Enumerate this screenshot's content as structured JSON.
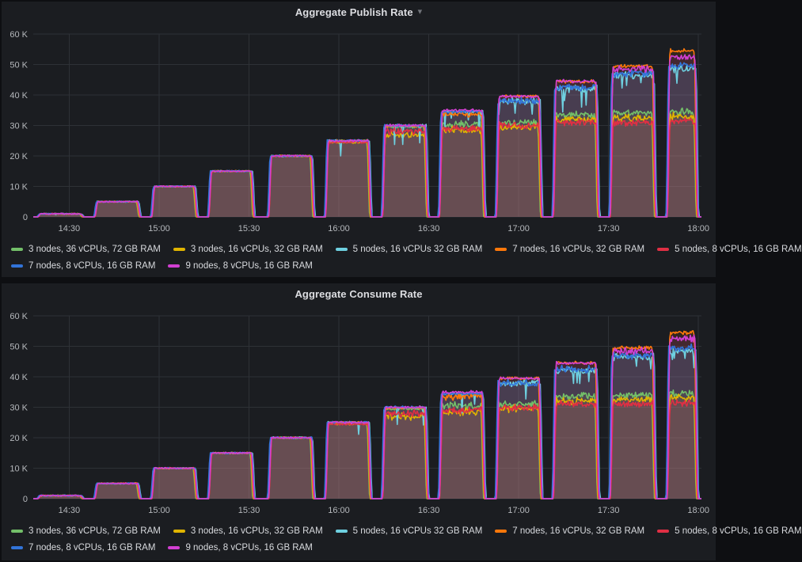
{
  "panels": [
    {
      "menu_caret": true
    },
    {
      "menu_caret": false
    }
  ],
  "chart_data": [
    {
      "type": "area",
      "title": "Aggregate Publish Rate",
      "xlabel": "",
      "ylabel": "",
      "ylim": [
        0,
        60000
      ],
      "y_ticks": [
        "0",
        "10 K",
        "20 K",
        "30 K",
        "40 K",
        "50 K",
        "60 K"
      ],
      "x_ticks": [
        "14:30",
        "15:00",
        "15:30",
        "16:00",
        "16:30",
        "17:00",
        "17:30",
        "18:00"
      ],
      "time_range": [
        "14:18",
        "18:01"
      ],
      "grid": true,
      "legend_position": "bottom",
      "step_targets_k": [
        1,
        5,
        10,
        15,
        20,
        25,
        30,
        35,
        40,
        45,
        50,
        55
      ],
      "steps": [
        {
          "start": "14:20",
          "end": "14:34"
        },
        {
          "start": "14:39",
          "end": "14:53"
        },
        {
          "start": "14:58",
          "end": "15:12"
        },
        {
          "start": "15:17",
          "end": "15:31"
        },
        {
          "start": "15:37",
          "end": "15:51"
        },
        {
          "start": "15:56",
          "end": "16:10"
        },
        {
          "start": "16:15",
          "end": "16:29"
        },
        {
          "start": "16:34",
          "end": "16:48"
        },
        {
          "start": "16:53",
          "end": "17:07"
        },
        {
          "start": "17:12",
          "end": "17:26"
        },
        {
          "start": "17:31",
          "end": "17:45"
        },
        {
          "start": "17:50",
          "end": "17:59"
        }
      ],
      "series": [
        {
          "name": "3 nodes, 36 vCPUs, 72 GB RAM",
          "color": "#73BF69",
          "plateaus_k": [
            1,
            5,
            10,
            15,
            20,
            25,
            29.5,
            31,
            31.5,
            34,
            34.5,
            35
          ]
        },
        {
          "name": "3 nodes, 16 vCPUs, 32 GB RAM",
          "color": "#E0B400",
          "plateaus_k": [
            1,
            5,
            10,
            15,
            20,
            24.5,
            27.5,
            29,
            30,
            32.5,
            33,
            33.5
          ]
        },
        {
          "name": "5 nodes, 16 vCPUs 32 GB RAM",
          "color": "#6ED0E0",
          "plateaus_k": [
            1,
            5,
            10,
            15,
            20,
            25,
            30,
            34.5,
            38.5,
            42.5,
            47,
            49
          ]
        },
        {
          "name": "7 nodes, 16 vCPUs, 32 GB RAM",
          "color": "#FF780A",
          "plateaus_k": [
            1,
            5,
            10,
            15,
            20,
            25,
            29.8,
            34,
            39.5,
            44.5,
            49.5,
            54.5
          ]
        },
        {
          "name": "5 nodes, 8 vCPUs, 16 GB RAM",
          "color": "#E02F44",
          "plateaus_k": [
            1,
            5,
            10,
            15,
            20,
            24.5,
            28.5,
            29.5,
            30.5,
            31.5,
            31.5,
            32
          ]
        },
        {
          "name": "7 nodes, 8 vCPUs, 16 GB RAM",
          "color": "#3274D9",
          "plateaus_k": [
            1,
            5,
            10,
            15,
            20,
            25,
            30,
            34.5,
            38.5,
            43,
            47.5,
            50
          ]
        },
        {
          "name": "9 nodes, 8 vCPUs, 16 GB RAM",
          "color": "#D23FD2",
          "plateaus_k": [
            1,
            5,
            10,
            15,
            20,
            25,
            30,
            35,
            39.5,
            44.5,
            49,
            53
          ]
        }
      ]
    },
    {
      "type": "area",
      "title": "Aggregate Consume Rate",
      "xlabel": "",
      "ylabel": "",
      "ylim": [
        0,
        60000
      ],
      "y_ticks": [
        "0",
        "10 K",
        "20 K",
        "30 K",
        "40 K",
        "50 K",
        "60 K"
      ],
      "x_ticks": [
        "14:30",
        "15:00",
        "15:30",
        "16:00",
        "16:30",
        "17:00",
        "17:30",
        "18:00"
      ],
      "time_range": [
        "14:18",
        "18:01"
      ],
      "grid": true,
      "legend_position": "bottom",
      "step_targets_k": [
        1,
        5,
        10,
        15,
        20,
        25,
        30,
        35,
        40,
        45,
        50,
        55
      ],
      "steps": [
        {
          "start": "14:20",
          "end": "14:34"
        },
        {
          "start": "14:39",
          "end": "14:53"
        },
        {
          "start": "14:58",
          "end": "15:12"
        },
        {
          "start": "15:17",
          "end": "15:31"
        },
        {
          "start": "15:37",
          "end": "15:51"
        },
        {
          "start": "15:56",
          "end": "16:10"
        },
        {
          "start": "16:15",
          "end": "16:29"
        },
        {
          "start": "16:34",
          "end": "16:48"
        },
        {
          "start": "16:53",
          "end": "17:07"
        },
        {
          "start": "17:12",
          "end": "17:26"
        },
        {
          "start": "17:31",
          "end": "17:45"
        },
        {
          "start": "17:50",
          "end": "17:59"
        }
      ],
      "series": [
        {
          "name": "3 nodes, 36 vCPUs, 72 GB RAM",
          "color": "#73BF69",
          "plateaus_k": [
            1,
            5,
            10,
            15,
            20,
            25,
            29.5,
            31,
            31.5,
            34,
            34.5,
            35
          ]
        },
        {
          "name": "3 nodes, 16 vCPUs, 32 GB RAM",
          "color": "#E0B400",
          "plateaus_k": [
            1,
            5,
            10,
            15,
            20,
            24.5,
            27.5,
            29,
            30,
            32.5,
            33,
            33.5
          ]
        },
        {
          "name": "5 nodes, 16 vCPUs 32 GB RAM",
          "color": "#6ED0E0",
          "plateaus_k": [
            1,
            5,
            10,
            15,
            20,
            25,
            30,
            34.5,
            38.5,
            42.5,
            47,
            49
          ]
        },
        {
          "name": "7 nodes, 16 vCPUs, 32 GB RAM",
          "color": "#FF780A",
          "plateaus_k": [
            1,
            5,
            10,
            15,
            20,
            25,
            29.8,
            34,
            39.5,
            44.5,
            49.5,
            54.5
          ]
        },
        {
          "name": "5 nodes, 8 vCPUs, 16 GB RAM",
          "color": "#E02F44",
          "plateaus_k": [
            1,
            5,
            10,
            15,
            20,
            24.5,
            28.5,
            29.5,
            30.5,
            31.5,
            31.5,
            32
          ]
        },
        {
          "name": "7 nodes, 8 vCPUs, 16 GB RAM",
          "color": "#3274D9",
          "plateaus_k": [
            1,
            5,
            10,
            15,
            20,
            25,
            30,
            34.5,
            38.5,
            43,
            47.5,
            50
          ]
        },
        {
          "name": "9 nodes, 8 vCPUs, 16 GB RAM",
          "color": "#D23FD2",
          "plateaus_k": [
            1,
            5,
            10,
            15,
            20,
            25,
            30,
            35,
            39.5,
            44.5,
            49,
            53
          ]
        }
      ]
    }
  ]
}
